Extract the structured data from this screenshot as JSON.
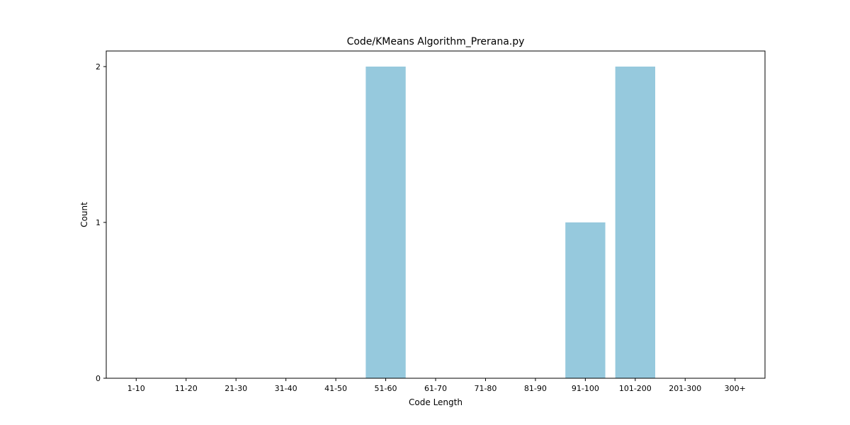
{
  "chart_data": {
    "type": "bar",
    "title": "Code/KMeans Algorithm_Prerana.py",
    "xlabel": "Code Length",
    "ylabel": "Count",
    "categories": [
      "1-10",
      "11-20",
      "21-30",
      "31-40",
      "41-50",
      "51-60",
      "61-70",
      "71-80",
      "81-90",
      "91-100",
      "101-200",
      "201-300",
      "300+"
    ],
    "values": [
      0,
      0,
      0,
      0,
      0,
      2,
      0,
      0,
      0,
      1,
      2,
      0,
      0
    ],
    "ylim": [
      0,
      2.1
    ],
    "yticks": [
      0,
      1,
      2
    ],
    "grid": false,
    "bar_color": "#96c9dd",
    "axis_color": "#000000"
  }
}
